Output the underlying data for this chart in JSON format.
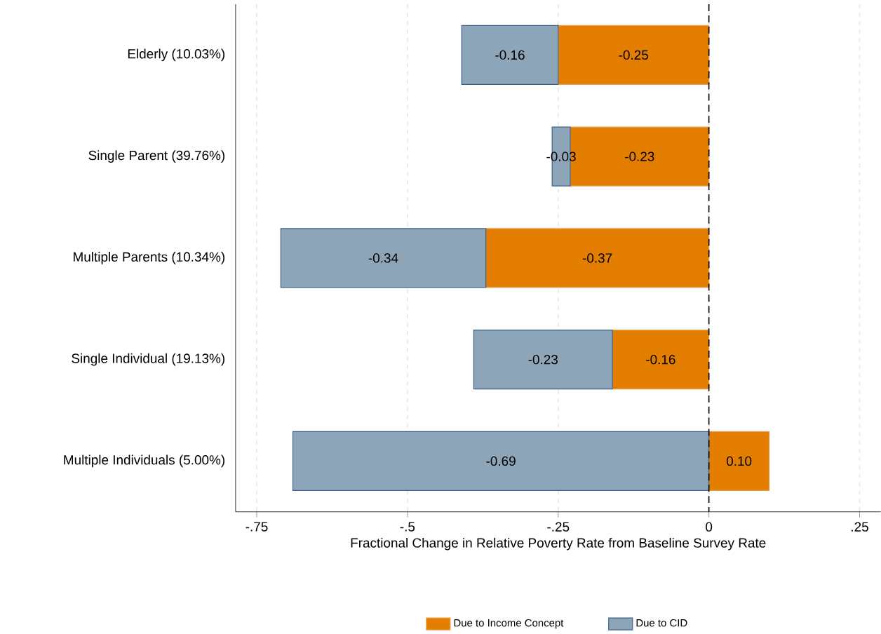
{
  "chart_data": {
    "type": "bar",
    "orientation": "horizontal",
    "stacked": true,
    "xlabel": "Fractional Change in Relative Poverty Rate from Baseline Survey Rate",
    "categories": [
      "Elderly (10.03%)",
      "Single Parent (39.76%)",
      "Multiple Parents (10.34%)",
      "Single Individual (19.13%)",
      "Multiple Individuals (5.00%)"
    ],
    "series": [
      {
        "name": "Due to Income Concept",
        "color": "#e37e00",
        "values": [
          -0.25,
          -0.23,
          -0.37,
          -0.16,
          0.1
        ],
        "value_labels": [
          "-0.25",
          "-0.23",
          "-0.37",
          "-0.16",
          "0.10"
        ]
      },
      {
        "name": "Due to CID",
        "color": "#8da5b9",
        "values": [
          -0.16,
          -0.03,
          -0.34,
          -0.23,
          -0.69
        ],
        "value_labels": [
          "-0.16",
          "-0.03",
          "-0.34",
          "-0.23",
          "-0.69"
        ]
      }
    ],
    "xlim": [
      -0.785,
      0.285
    ],
    "xticks": [
      {
        "value": -0.75,
        "label": "-.75"
      },
      {
        "value": -0.5,
        "label": "-.5"
      },
      {
        "value": -0.25,
        "label": "-.25"
      },
      0,
      {
        "value": 0.25,
        "label": ".25"
      }
    ],
    "grid": "x",
    "legend": "bottom",
    "ref_lines": [
      {
        "axis": "x",
        "value": 0,
        "line_style": "dashed",
        "color": "#000000"
      }
    ]
  }
}
